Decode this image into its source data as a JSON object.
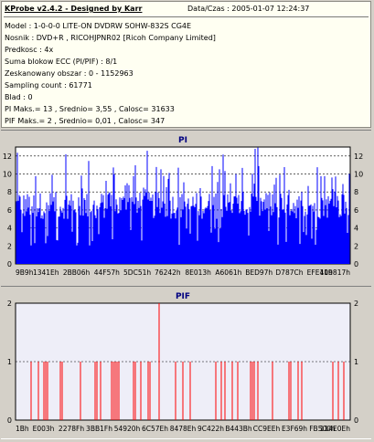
{
  "info": {
    "title": "KProbe v2.4.2 - Designed by Karr",
    "date": "Data/Czas : 2005-01-07 12:24:37",
    "lines": [
      "Model : 1-0-0-0 LITE-ON DVDRW SOHW-832S  CG4E",
      "Nosnik : DVD+R , RICOHJPNR02 [Ricoh Company Limited]",
      "Predkosc : 4x",
      "Suma blokow ECC (PI/PIF) : 8/1",
      "Zeskanowany obszar : 0 - 1152963",
      "Sampling count : 61771",
      "Blad : 0",
      "PI Maks.= 13 , Srednio= 3,55 , Calosc= 31633",
      "PIF Maks.= 2 , Srednio= 0,01 , Calosc= 347"
    ]
  },
  "chart_data": [
    {
      "type": "bar",
      "title": "PI",
      "ylim": [
        0,
        13
      ],
      "y_ticks": [
        "0",
        "2",
        "4",
        "6",
        "8",
        "10",
        "12"
      ],
      "x_tick_labels": [
        "9B9h",
        "1341Eh",
        "2BB06h",
        "44F57h",
        "5DC51h",
        "76242h",
        "8E013h",
        "A6061h",
        "BED97h",
        "D787Ch",
        "EFE41h",
        "109817h"
      ],
      "grid": true,
      "color": "#0000ff",
      "baseline_range": [
        5,
        8
      ],
      "max_value": 13,
      "average": 3.55
    },
    {
      "type": "bar",
      "title": "PIF",
      "ylim": [
        0,
        2
      ],
      "y_ticks": [
        "0",
        "1",
        "2"
      ],
      "x_tick_labels": [
        "1Bh",
        "E003h",
        "2278Fh",
        "3BB1Fh",
        "54920h",
        "6C57Eh",
        "8478Eh",
        "9C422h",
        "B443Bh",
        "CC9EEh",
        "E3F69h",
        "FB500h",
        "114E0Eh"
      ],
      "grid": true,
      "color": "#ff0000",
      "max_value": 2,
      "average": 0.01
    }
  ]
}
